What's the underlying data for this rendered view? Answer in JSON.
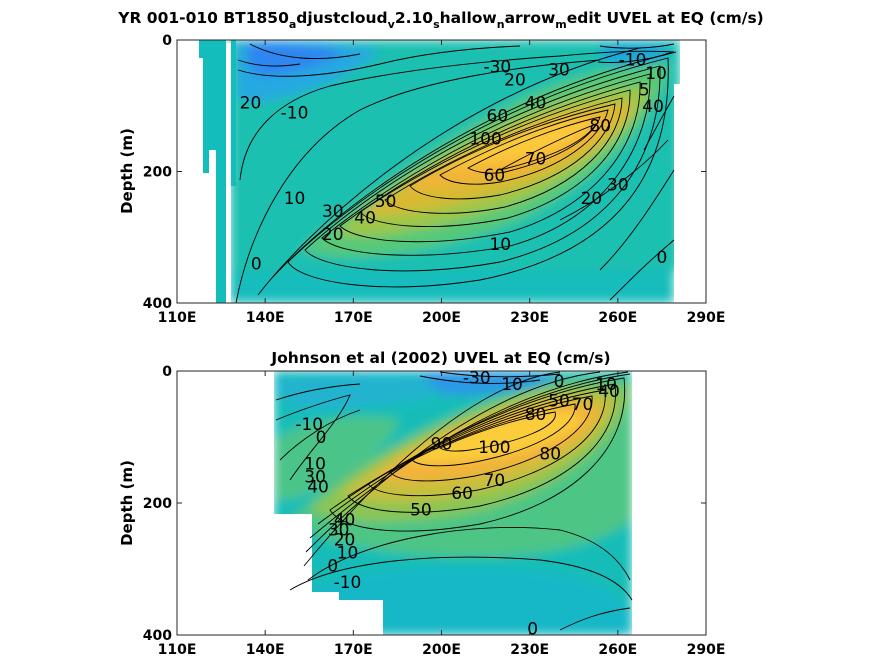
{
  "chart_data": [
    {
      "type": "heatmap",
      "title_parts": [
        "YR 001-010 BT1850",
        "a",
        "djustcloud",
        "v",
        "2.10",
        "s",
        "hallow",
        "n",
        "arrow",
        "m",
        "edit UVEL at EQ (cm/s)"
      ],
      "ylabel": "Depth (m)",
      "xlabel": "",
      "xlim": [
        110,
        290
      ],
      "ylim": [
        0,
        400
      ],
      "y_reversed": true,
      "xticks": [
        "110E",
        "140E",
        "170E",
        "200E",
        "230E",
        "260E",
        "290E"
      ],
      "yticks": [
        "0",
        "200",
        "400"
      ],
      "colormap": "parula",
      "color_range": [
        -40,
        120
      ],
      "land_mask": [
        {
          "lon": [
            110,
            123
          ],
          "depth": [
            0,
            400
          ]
        },
        {
          "lon": [
            128,
            131
          ],
          "depth": [
            230,
            400
          ]
        }
      ],
      "field": {
        "core_lon": 210,
        "core_depth": 155,
        "core_speed": 110,
        "westward_surface_lon": 135,
        "westward_surface_speed": -40
      },
      "contour_labels": [
        {
          "text": "-30",
          "lon": 219,
          "depth": 40
        },
        {
          "text": "-10",
          "lon": 150,
          "depth": 110
        },
        {
          "text": "20",
          "lon": 135,
          "depth": 95
        },
        {
          "text": "10",
          "lon": 150,
          "depth": 240
        },
        {
          "text": "30",
          "lon": 163,
          "depth": 260
        },
        {
          "text": "20",
          "lon": 163,
          "depth": 295
        },
        {
          "text": "0",
          "lon": 137,
          "depth": 340
        },
        {
          "text": "50",
          "lon": 181,
          "depth": 245
        },
        {
          "text": "40",
          "lon": 174,
          "depth": 270
        },
        {
          "text": "10",
          "lon": 220,
          "depth": 310
        },
        {
          "text": "60",
          "lon": 218,
          "depth": 205
        },
        {
          "text": "70",
          "lon": 232,
          "depth": 180
        },
        {
          "text": "20",
          "lon": 225,
          "depth": 60
        },
        {
          "text": "30",
          "lon": 240,
          "depth": 45
        },
        {
          "text": "40",
          "lon": 232,
          "depth": 95
        },
        {
          "text": "60",
          "lon": 219,
          "depth": 115
        },
        {
          "text": "100",
          "lon": 215,
          "depth": 150
        },
        {
          "text": "80",
          "lon": 254,
          "depth": 130
        },
        {
          "text": "40",
          "lon": 272,
          "depth": 100
        },
        {
          "text": "5",
          "lon": 269,
          "depth": 75
        },
        {
          "text": "-10",
          "lon": 265,
          "depth": 30
        },
        {
          "text": "10",
          "lon": 273,
          "depth": 50
        },
        {
          "text": "30",
          "lon": 260,
          "depth": 220
        },
        {
          "text": "20",
          "lon": 251,
          "depth": 240
        },
        {
          "text": "0",
          "lon": 275,
          "depth": 330
        }
      ]
    },
    {
      "type": "heatmap",
      "title": "Johnson et al (2002) UVEL at EQ (cm/s)",
      "ylabel": "Depth (m)",
      "xlabel": "",
      "xlim": [
        110,
        290
      ],
      "ylim": [
        0,
        400
      ],
      "y_reversed": true,
      "xticks": [
        "110E",
        "140E",
        "170E",
        "200E",
        "230E",
        "260E",
        "290E"
      ],
      "yticks": [
        "0",
        "200",
        "400"
      ],
      "colormap": "parula",
      "color_range": [
        -40,
        120
      ],
      "data_lon_range": [
        143,
        262
      ],
      "no_data_mask": [
        {
          "lon": [
            143,
            156
          ],
          "depth": [
            218,
            400
          ]
        },
        {
          "lon": [
            156,
            166
          ],
          "depth": [
            338,
            400
          ]
        },
        {
          "lon": [
            166,
            180
          ],
          "depth": [
            348,
            400
          ]
        }
      ],
      "field": {
        "core_lon": 215,
        "core_depth": 130,
        "core_speed": 100,
        "westward_surface_lon": 220,
        "westward_surface_speed": -35
      },
      "contour_labels": [
        {
          "text": "-30",
          "lon": 212,
          "depth": 10
        },
        {
          "text": "10",
          "lon": 224,
          "depth": 20
        },
        {
          "text": "0",
          "lon": 240,
          "depth": 15
        },
        {
          "text": "10",
          "lon": 256,
          "depth": 20
        },
        {
          "text": "40",
          "lon": 257,
          "depth": 30
        },
        {
          "text": "50",
          "lon": 240,
          "depth": 45
        },
        {
          "text": "70",
          "lon": 248,
          "depth": 50
        },
        {
          "text": "80",
          "lon": 232,
          "depth": 65
        },
        {
          "text": "-10",
          "lon": 155,
          "depth": 80
        },
        {
          "text": "0",
          "lon": 159,
          "depth": 100
        },
        {
          "text": "10",
          "lon": 157,
          "depth": 140
        },
        {
          "text": "30",
          "lon": 157,
          "depth": 160
        },
        {
          "text": "40",
          "lon": 158,
          "depth": 175
        },
        {
          "text": "90",
          "lon": 200,
          "depth": 110
        },
        {
          "text": "100",
          "lon": 218,
          "depth": 115
        },
        {
          "text": "80",
          "lon": 237,
          "depth": 125
        },
        {
          "text": "70",
          "lon": 218,
          "depth": 165
        },
        {
          "text": "60",
          "lon": 207,
          "depth": 185
        },
        {
          "text": "50",
          "lon": 193,
          "depth": 210
        },
        {
          "text": "40",
          "lon": 167,
          "depth": 225
        },
        {
          "text": "30",
          "lon": 165,
          "depth": 240
        },
        {
          "text": "20",
          "lon": 167,
          "depth": 255
        },
        {
          "text": "10",
          "lon": 168,
          "depth": 275
        },
        {
          "text": "0",
          "lon": 163,
          "depth": 295
        },
        {
          "text": "-10",
          "lon": 168,
          "depth": 320
        },
        {
          "text": "0",
          "lon": 231,
          "depth": 390
        }
      ]
    }
  ]
}
